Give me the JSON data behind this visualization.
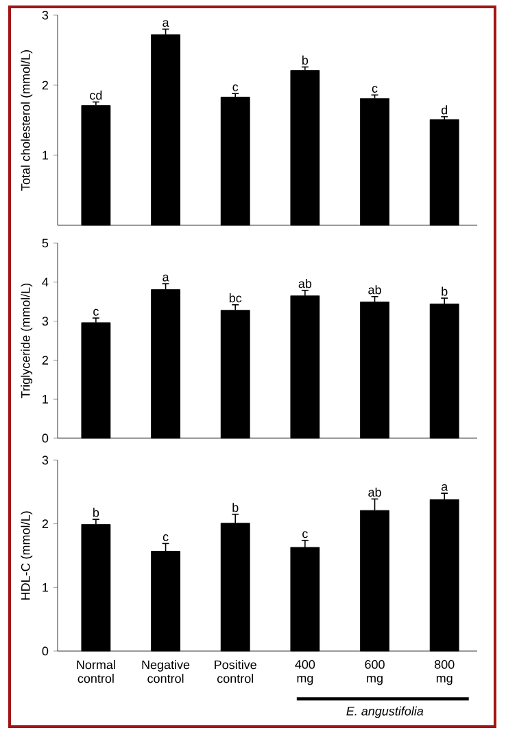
{
  "chart_data": [
    {
      "type": "bar",
      "categories": [
        null,
        null,
        null,
        null,
        null,
        null
      ],
      "values": [
        1.71,
        2.72,
        1.83,
        2.21,
        1.81,
        1.51
      ],
      "errors": [
        0.05,
        0.08,
        0.05,
        0.05,
        0.05,
        0.04
      ],
      "color": "#000000",
      "ylabel": "Total cholesterol (mmol/L)",
      "ylim": [
        0,
        3
      ],
      "yticks": [
        1,
        2,
        3
      ],
      "tick_labels": "y",
      "annotations": [
        "cd",
        "a",
        "c",
        "b",
        "c",
        "d"
      ]
    },
    {
      "type": "bar",
      "categories": [
        null,
        null,
        null,
        null,
        null,
        null
      ],
      "values": [
        2.96,
        3.81,
        3.28,
        3.65,
        3.49,
        3.44
      ],
      "errors": [
        0.12,
        0.15,
        0.14,
        0.14,
        0.14,
        0.15
      ],
      "color": "#000000",
      "ylabel": "Triglyceride (mmol/L)",
      "ylim": [
        0,
        5
      ],
      "yticks": [
        0,
        1,
        2,
        3,
        4,
        5
      ],
      "tick_labels": "y",
      "annotations": [
        "c",
        "a",
        "bc",
        "ab",
        "ab",
        "b"
      ]
    },
    {
      "type": "bar",
      "categories": [
        "Normal control",
        "Negative control",
        "Positive control",
        "400 mg",
        "600 mg",
        "800 mg"
      ],
      "values": [
        1.99,
        1.57,
        2.01,
        1.63,
        2.21,
        2.38
      ],
      "errors": [
        0.08,
        0.12,
        0.14,
        0.11,
        0.18,
        0.1
      ],
      "color": "#000000",
      "ylabel": "HDL-C (mmol/L)",
      "ylim": [
        0,
        3
      ],
      "yticks": [
        0,
        1,
        2,
        3
      ],
      "annotations": [
        "b",
        "c",
        "b",
        "c",
        "ab",
        "a",
        "E. angustifolia"
      ]
    }
  ]
}
